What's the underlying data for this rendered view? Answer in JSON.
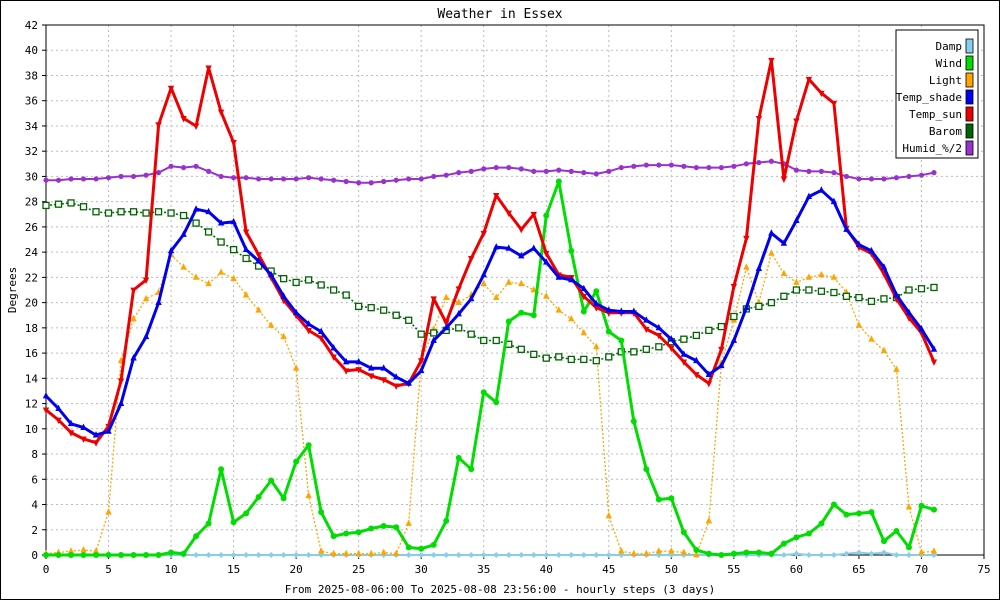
{
  "chart_data": {
    "type": "line",
    "title": "Weather in Essex",
    "xlabel": "From 2025-08-06:00 To 2025-08-08 23:56:00 - hourly steps (3 days)",
    "ylabel": "Degrees",
    "xlim": [
      0,
      75
    ],
    "ylim": [
      0,
      42
    ],
    "xticks": [
      0,
      5,
      10,
      15,
      20,
      25,
      30,
      35,
      40,
      45,
      50,
      55,
      60,
      65,
      70,
      75
    ],
    "yticks": [
      0,
      2,
      4,
      6,
      8,
      10,
      12,
      14,
      16,
      18,
      20,
      22,
      24,
      26,
      28,
      30,
      32,
      34,
      36,
      38,
      40,
      42
    ],
    "grid": true,
    "legend_position": "top-right",
    "series": [
      {
        "name": "Damp",
        "color": "#87ceeb",
        "marker": "diamond",
        "values": [
          0,
          0,
          0,
          0,
          0,
          0,
          0,
          0,
          0,
          0,
          0,
          0,
          0,
          0,
          0,
          0,
          0,
          0,
          0,
          0,
          0,
          0,
          0,
          0,
          0,
          0,
          0,
          0,
          0,
          0,
          0,
          0,
          0,
          0,
          0,
          0,
          0,
          0,
          0,
          0,
          0,
          0,
          0,
          0,
          0,
          0,
          0,
          0,
          0,
          0,
          0,
          0,
          0,
          0,
          0,
          0,
          0,
          0,
          0,
          0,
          0.1,
          0,
          0,
          0,
          0.1,
          0.2,
          0.1,
          0.2,
          0,
          0,
          0,
          0
        ]
      },
      {
        "name": "Wind",
        "color": "#00dd00",
        "marker": "circle",
        "values": [
          0,
          0,
          0,
          0,
          0,
          0,
          0,
          0,
          0,
          0,
          0.2,
          0.1,
          1.5,
          2.5,
          6.8,
          2.6,
          3.3,
          4.6,
          5.9,
          4.5,
          7.4,
          8.7,
          3.4,
          1.5,
          1.7,
          1.8,
          2.1,
          2.3,
          2.2,
          0.6,
          0.5,
          0.8,
          2.7,
          7.7,
          6.8,
          12.9,
          12.1,
          18.5,
          19.2,
          19.0,
          26.9,
          29.6,
          24.1,
          19.3,
          20.9,
          17.7,
          17.0,
          10.6,
          6.8,
          4.4,
          4.5,
          1.8,
          0.4,
          0.1,
          0,
          0.1,
          0.2,
          0.2,
          0.1,
          0.9,
          1.4,
          1.7,
          2.5,
          4.0,
          3.2,
          3.3,
          3.4,
          1.1,
          1.9,
          0.6,
          3.9,
          3.6
        ]
      },
      {
        "name": "Light",
        "color": "#ffa500",
        "marker": "triangle",
        "values": [
          0.1,
          0.2,
          0.3,
          0.4,
          0.3,
          3.4,
          15.4,
          18.7,
          20.3,
          20.8,
          23.8,
          22.8,
          22.0,
          21.5,
          22.4,
          21.9,
          20.6,
          19.4,
          18.2,
          17.3,
          14.8,
          4.7,
          0.3,
          0.1,
          0.1,
          0.1,
          0.1,
          0.2,
          0.1,
          2.5,
          15.4,
          17.9,
          20.4,
          20.0,
          20.6,
          21.5,
          20.4,
          21.6,
          21.5,
          21.0,
          20.5,
          19.4,
          18.7,
          17.6,
          16.5,
          3.1,
          0.3,
          0.1,
          0.1,
          0.3,
          0.3,
          0.2,
          0,
          2.7,
          15.2,
          18.6,
          22.8,
          20.0,
          23.9,
          22.3,
          21.6,
          22.0,
          22.2,
          22.0,
          20.8,
          18.2,
          17.1,
          16.2,
          14.7,
          3.8,
          0.2,
          0.3
        ]
      },
      {
        "name": "Temp_shade",
        "color": "#0000ee",
        "marker": "triangle",
        "values": [
          12.6,
          11.6,
          10.4,
          10.1,
          9.5,
          9.8,
          12.0,
          15.6,
          17.3,
          20.0,
          24.1,
          25.4,
          27.4,
          27.2,
          26.3,
          26.4,
          24.2,
          23.3,
          22.2,
          20.5,
          19.2,
          18.3,
          17.7,
          16.4,
          15.3,
          15.3,
          14.8,
          14.8,
          14.1,
          13.6,
          14.6,
          17.0,
          18.0,
          19.1,
          20.3,
          22.2,
          24.4,
          24.3,
          23.7,
          24.3,
          23.2,
          22.0,
          21.8,
          21.1,
          19.9,
          19.4,
          19.3,
          19.3,
          18.6,
          18.0,
          17.1,
          15.9,
          15.4,
          14.3,
          15.0,
          17.0,
          19.6,
          22.7,
          25.5,
          24.7,
          26.5,
          28.4,
          28.9,
          28.0,
          25.8,
          24.6,
          24.1,
          22.8,
          20.6,
          19.2,
          17.9,
          16.3
        ]
      },
      {
        "name": "Temp_sun",
        "color": "#ee0000",
        "marker": "triangle-down",
        "values": [
          11.5,
          10.7,
          9.7,
          9.2,
          8.9,
          10.2,
          13.8,
          21.0,
          21.8,
          34.1,
          37.0,
          34.6,
          34.0,
          38.6,
          35.1,
          32.7,
          25.6,
          23.8,
          22.0,
          20.2,
          19.0,
          17.8,
          17.2,
          15.7,
          14.6,
          14.7,
          14.2,
          13.9,
          13.4,
          13.6,
          15.4,
          20.3,
          18.4,
          21.1,
          23.5,
          25.5,
          28.5,
          27.1,
          25.8,
          27.0,
          23.9,
          22.2,
          22.0,
          20.5,
          19.6,
          19.2,
          19.2,
          19.2,
          17.9,
          17.4,
          16.4,
          15.3,
          14.3,
          13.6,
          16.3,
          21.3,
          25.1,
          34.6,
          39.2,
          29.8,
          34.4,
          37.7,
          36.6,
          35.8,
          25.9,
          24.4,
          23.9,
          22.3,
          20.3,
          18.8,
          17.6,
          15.3
        ]
      },
      {
        "name": "Barom",
        "color": "#006400",
        "marker": "square",
        "values": [
          27.7,
          27.8,
          27.9,
          27.6,
          27.2,
          27.1,
          27.2,
          27.2,
          27.1,
          27.2,
          27.1,
          26.9,
          26.3,
          25.6,
          24.8,
          24.2,
          23.5,
          22.9,
          22.5,
          21.9,
          21.6,
          21.8,
          21.4,
          21.0,
          20.6,
          19.7,
          19.6,
          19.4,
          19.0,
          18.6,
          17.5,
          17.6,
          17.8,
          18.0,
          17.5,
          17.0,
          17.0,
          16.7,
          16.3,
          15.9,
          15.6,
          15.7,
          15.5,
          15.5,
          15.4,
          15.7,
          16.1,
          16.1,
          16.3,
          16.5,
          16.9,
          17.1,
          17.4,
          17.8,
          18.1,
          18.9,
          19.5,
          19.7,
          20.0,
          20.5,
          21.0,
          21.0,
          20.9,
          20.8,
          20.5,
          20.4,
          20.1,
          20.3,
          20.4,
          21.0,
          21.1,
          21.2
        ]
      },
      {
        "name": "Humid_%/2",
        "color": "#9932cc",
        "marker": "star",
        "values": [
          29.7,
          29.7,
          29.8,
          29.8,
          29.8,
          29.9,
          30.0,
          30.0,
          30.1,
          30.3,
          30.8,
          30.7,
          30.8,
          30.4,
          30.0,
          29.9,
          29.9,
          29.8,
          29.8,
          29.8,
          29.8,
          29.9,
          29.8,
          29.7,
          29.6,
          29.5,
          29.5,
          29.6,
          29.7,
          29.8,
          29.8,
          30.0,
          30.1,
          30.3,
          30.4,
          30.6,
          30.7,
          30.7,
          30.6,
          30.4,
          30.4,
          30.5,
          30.4,
          30.3,
          30.2,
          30.4,
          30.7,
          30.8,
          30.9,
          30.9,
          30.9,
          30.8,
          30.7,
          30.7,
          30.7,
          30.8,
          31.0,
          31.1,
          31.2,
          31.0,
          30.5,
          30.4,
          30.4,
          30.3,
          30.0,
          29.8,
          29.8,
          29.8,
          29.9,
          30.0,
          30.1,
          30.3
        ]
      }
    ]
  }
}
